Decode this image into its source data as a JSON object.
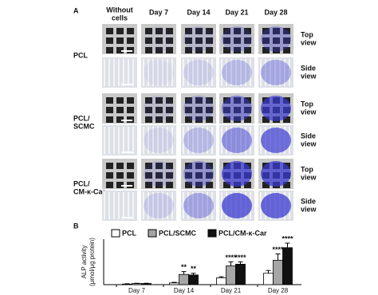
{
  "panel_a": {
    "label": "A",
    "columns": [
      [
        "Without",
        "cells"
      ],
      [
        "Day 7"
      ],
      [
        "Day 14"
      ],
      [
        "Day 21"
      ],
      [
        "Day 28"
      ]
    ],
    "groups": [
      [
        "PCL"
      ],
      [
        "PCL/",
        "SCMC"
      ],
      [
        "PCL/",
        "CM-κ-Car"
      ]
    ],
    "views": [
      [
        "Top",
        "view"
      ],
      [
        "Side",
        "view"
      ]
    ]
  },
  "chart_data": {
    "type": "bar",
    "panel_label": "B",
    "y_label": [
      "ALP activity",
      "(μmol/μg protein)"
    ],
    "categories": [
      "Day 7",
      "Day 14",
      "Day 21",
      "Day 28"
    ],
    "ylim": [
      0,
      8
    ],
    "series": [
      {
        "name": "PCL",
        "color": "#ffffff",
        "values": [
          0.1,
          0.3,
          1.2,
          2.0
        ],
        "errors": [
          0.05,
          0.1,
          0.2,
          0.5
        ],
        "significance": [
          null,
          null,
          null,
          null
        ]
      },
      {
        "name": "PCL/SCMC",
        "color": "#a6a6a6",
        "values": [
          0.2,
          1.8,
          3.3,
          4.3
        ],
        "errors": [
          0.05,
          0.5,
          0.7,
          1.1
        ],
        "significance": [
          null,
          "**",
          "****",
          "****"
        ]
      },
      {
        "name": "PCL/CM-κ-Car",
        "color": "#111111",
        "values": [
          0.2,
          1.7,
          3.6,
          6.5
        ],
        "errors": [
          0.05,
          0.3,
          0.4,
          0.8
        ],
        "significance": [
          null,
          "**",
          "****",
          "****"
        ]
      }
    ],
    "legend": "top"
  }
}
